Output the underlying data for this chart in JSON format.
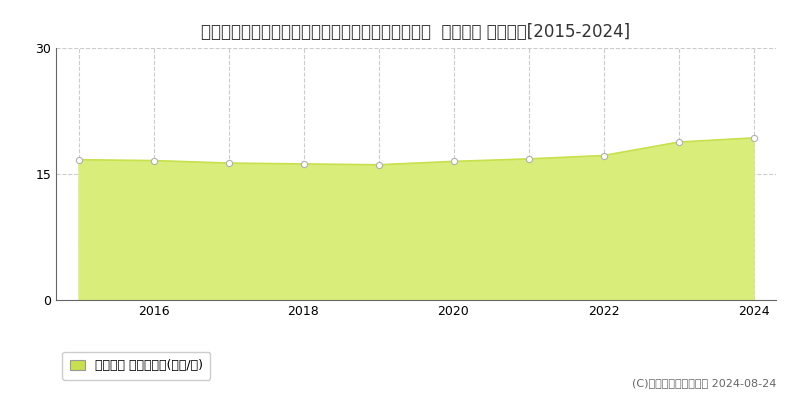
{
  "title": "北海道札幌市西区宮の沢３条５丁目４８７番１４６  地価公示 地価推移[2015-2024]",
  "years": [
    2015,
    2016,
    2017,
    2018,
    2019,
    2020,
    2021,
    2022,
    2023,
    2024
  ],
  "values": [
    16.7,
    16.6,
    16.3,
    16.2,
    16.1,
    16.5,
    16.8,
    17.2,
    18.8,
    19.3
  ],
  "ylim": [
    0,
    30
  ],
  "yticks": [
    0,
    15,
    30
  ],
  "xticks": [
    2016,
    2018,
    2020,
    2022,
    2024
  ],
  "all_year_ticks": [
    2015,
    2016,
    2017,
    2018,
    2019,
    2020,
    2021,
    2022,
    2023,
    2024
  ],
  "line_color": "#c8e04b",
  "fill_color": "#d8ed7a",
  "fill_alpha": 1.0,
  "marker_facecolor": "#ffffff",
  "marker_edgecolor": "#b0b0b0",
  "grid_color": "#cccccc",
  "bg_color": "#ffffff",
  "legend_label": "地価公示 平均坪単価(万円/坪)",
  "legend_marker_color": "#c8e04b",
  "copyright_text": "(C)土地価格ドットコム 2024-08-24",
  "title_fontsize": 12,
  "tick_fontsize": 9,
  "legend_fontsize": 9,
  "copyright_fontsize": 8,
  "xlim_left": 2014.7,
  "xlim_right": 2024.3
}
